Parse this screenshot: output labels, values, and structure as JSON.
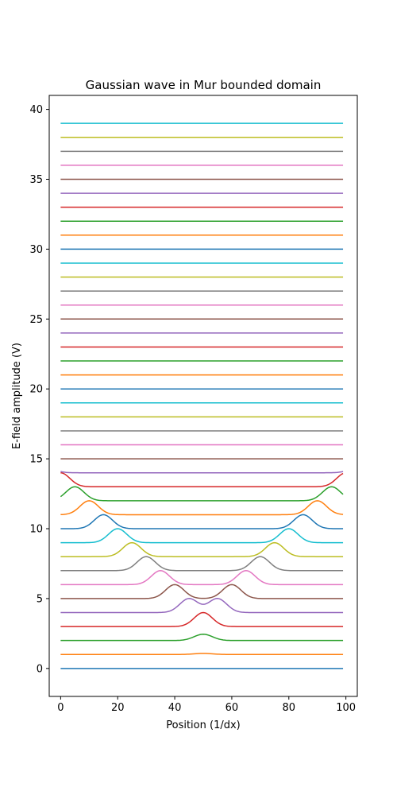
{
  "chart_data": {
    "type": "line",
    "title": "Gaussian wave in Mur bounded domain",
    "xlabel": "Position (1/dx)",
    "ylabel": "E-field amplitude (V)",
    "xlim": [
      -4,
      104
    ],
    "ylim": [
      -2,
      41
    ],
    "xticks": [
      0,
      20,
      40,
      60,
      80,
      100
    ],
    "yticks": [
      0,
      5,
      10,
      15,
      20,
      25,
      30,
      35,
      40
    ],
    "x_range": [
      0,
      99
    ],
    "grid": false,
    "legend": "none",
    "series_model": "each series i is a horizontal trace at offset i plus Gaussian pulse(s) of the listed peak centers (position units) and heights (V); the single pulse at position 50 splits into two pulses travelling outward",
    "series": [
      {
        "offset": 0,
        "color": "#1f77b4",
        "pulses": []
      },
      {
        "offset": 1,
        "color": "#ff7f0e",
        "pulses": [
          {
            "center": 50,
            "height": 0.08
          }
        ]
      },
      {
        "offset": 2,
        "color": "#2ca02c",
        "pulses": [
          {
            "center": 50,
            "height": 0.45
          }
        ]
      },
      {
        "offset": 3,
        "color": "#d62728",
        "pulses": [
          {
            "center": 50,
            "height": 1.0
          }
        ]
      },
      {
        "offset": 4,
        "color": "#9467bd",
        "pulses": [
          {
            "center": 45,
            "height": 1.0
          },
          {
            "center": 55,
            "height": 1.0
          }
        ]
      },
      {
        "offset": 5,
        "color": "#8c564b",
        "pulses": [
          {
            "center": 40,
            "height": 1.0
          },
          {
            "center": 60,
            "height": 1.0
          }
        ]
      },
      {
        "offset": 6,
        "color": "#e377c2",
        "pulses": [
          {
            "center": 35,
            "height": 1.0
          },
          {
            "center": 65,
            "height": 1.0
          }
        ]
      },
      {
        "offset": 7,
        "color": "#7f7f7f",
        "pulses": [
          {
            "center": 30,
            "height": 1.0
          },
          {
            "center": 70,
            "height": 1.0
          }
        ]
      },
      {
        "offset": 8,
        "color": "#bcbd22",
        "pulses": [
          {
            "center": 25,
            "height": 1.0
          },
          {
            "center": 75,
            "height": 1.0
          }
        ]
      },
      {
        "offset": 9,
        "color": "#17becf",
        "pulses": [
          {
            "center": 20,
            "height": 1.0
          },
          {
            "center": 80,
            "height": 1.0
          }
        ]
      },
      {
        "offset": 10,
        "color": "#1f77b4",
        "pulses": [
          {
            "center": 15,
            "height": 1.0
          },
          {
            "center": 85,
            "height": 1.0
          }
        ]
      },
      {
        "offset": 11,
        "color": "#ff7f0e",
        "pulses": [
          {
            "center": 10,
            "height": 1.0
          },
          {
            "center": 90,
            "height": 1.0
          }
        ]
      },
      {
        "offset": 12,
        "color": "#2ca02c",
        "pulses": [
          {
            "center": 5,
            "height": 1.0
          },
          {
            "center": 95,
            "height": 1.0
          }
        ]
      },
      {
        "offset": 13,
        "color": "#d62728",
        "pulses": [
          {
            "center": 0,
            "height": 1.0
          },
          {
            "center": 100,
            "height": 1.0
          }
        ]
      },
      {
        "offset": 14,
        "color": "#9467bd",
        "pulses": [
          {
            "center": -5,
            "height": 0.3
          },
          {
            "center": 104,
            "height": 0.3
          }
        ]
      },
      {
        "offset": 15,
        "color": "#8c564b",
        "pulses": []
      },
      {
        "offset": 16,
        "color": "#e377c2",
        "pulses": []
      },
      {
        "offset": 17,
        "color": "#7f7f7f",
        "pulses": []
      },
      {
        "offset": 18,
        "color": "#bcbd22",
        "pulses": []
      },
      {
        "offset": 19,
        "color": "#17becf",
        "pulses": []
      },
      {
        "offset": 20,
        "color": "#1f77b4",
        "pulses": []
      },
      {
        "offset": 21,
        "color": "#ff7f0e",
        "pulses": []
      },
      {
        "offset": 22,
        "color": "#2ca02c",
        "pulses": []
      },
      {
        "offset": 23,
        "color": "#d62728",
        "pulses": []
      },
      {
        "offset": 24,
        "color": "#9467bd",
        "pulses": []
      },
      {
        "offset": 25,
        "color": "#8c564b",
        "pulses": []
      },
      {
        "offset": 26,
        "color": "#e377c2",
        "pulses": []
      },
      {
        "offset": 27,
        "color": "#7f7f7f",
        "pulses": []
      },
      {
        "offset": 28,
        "color": "#bcbd22",
        "pulses": []
      },
      {
        "offset": 29,
        "color": "#17becf",
        "pulses": []
      },
      {
        "offset": 30,
        "color": "#1f77b4",
        "pulses": []
      },
      {
        "offset": 31,
        "color": "#ff7f0e",
        "pulses": []
      },
      {
        "offset": 32,
        "color": "#2ca02c",
        "pulses": []
      },
      {
        "offset": 33,
        "color": "#d62728",
        "pulses": []
      },
      {
        "offset": 34,
        "color": "#9467bd",
        "pulses": []
      },
      {
        "offset": 35,
        "color": "#8c564b",
        "pulses": []
      },
      {
        "offset": 36,
        "color": "#e377c2",
        "pulses": []
      },
      {
        "offset": 37,
        "color": "#7f7f7f",
        "pulses": []
      },
      {
        "offset": 38,
        "color": "#bcbd22",
        "pulses": []
      },
      {
        "offset": 39,
        "color": "#17becf",
        "pulses": []
      }
    ]
  }
}
